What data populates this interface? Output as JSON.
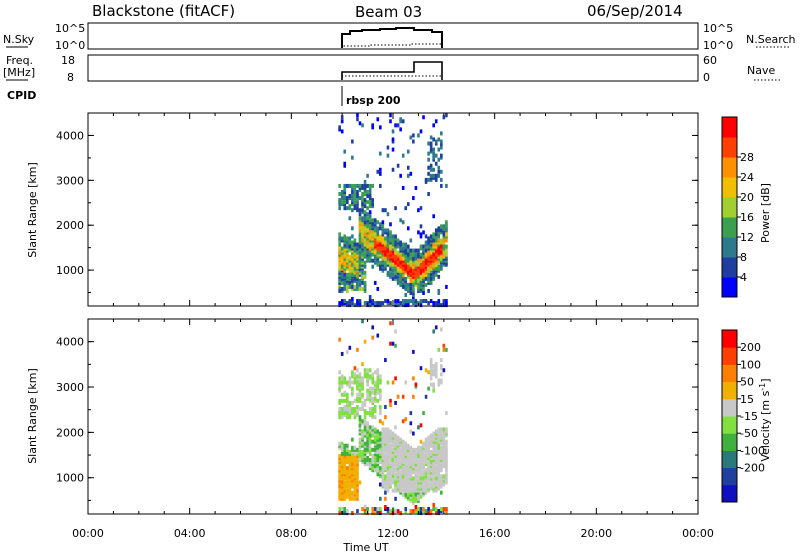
{
  "header": {
    "station": "Blackstone (fitACF)",
    "beam": "Beam 03",
    "date": "06/Sep/2014"
  },
  "panels": {
    "nsky": {
      "left_label": "N.Sky",
      "right_label": "N.Search",
      "left_ticks": [
        "10^5",
        "10^0"
      ],
      "right_ticks": [
        "10^5",
        "10^0"
      ]
    },
    "freq": {
      "left_label_1": "Freq.",
      "left_label_2": "[MHz]",
      "right_label": "Nave",
      "left_ticks": [
        "18",
        "8"
      ],
      "right_ticks": [
        "60",
        "0"
      ]
    },
    "cpid": {
      "label": "CPID",
      "value": "rbsp 200"
    }
  },
  "chart_data": [
    {
      "type": "heatmap",
      "name": "power",
      "ylabel": "Slant Range [km]",
      "xlabel": "",
      "yticks": [
        "1000",
        "2000",
        "3000",
        "4000"
      ],
      "ylim": [
        200,
        4500
      ],
      "colorbar_label": "Power [dB]",
      "colorbar_ticks": [
        "4",
        "8",
        "12",
        "16",
        "20",
        "24",
        "28"
      ],
      "colors": [
        "#0000ff",
        "#1e3fa0",
        "#2e7a8c",
        "#3aa050",
        "#9fd030",
        "#f0c000",
        "#ff9000",
        "#ff4000",
        "#ff0000"
      ]
    },
    {
      "type": "heatmap",
      "name": "velocity",
      "ylabel": "Slant Range [km]",
      "xlabel": "Time UT",
      "yticks": [
        "1000",
        "2000",
        "3000",
        "4000"
      ],
      "ylim": [
        200,
        4500
      ],
      "colorbar_label": "Velocity [m s^-1]",
      "colorbar_ticks": [
        "200",
        "100",
        "50",
        "15",
        "-15",
        "-50",
        "-100",
        "-200"
      ],
      "colors": [
        "#1010c0",
        "#2040a0",
        "#2a7a7a",
        "#40b040",
        "#80e040",
        "#c8c8c8",
        "#f0b000",
        "#ff8000",
        "#ff4000",
        "#ff0000"
      ]
    }
  ],
  "x_axis": {
    "ticks": [
      "00:00",
      "04:00",
      "08:00",
      "12:00",
      "16:00",
      "20:00",
      "00:00"
    ],
    "label": "Time UT"
  }
}
